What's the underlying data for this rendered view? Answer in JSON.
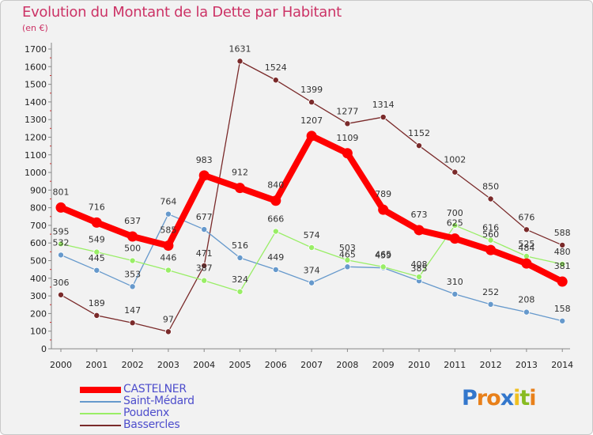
{
  "chart_data": {
    "type": "line",
    "title": "Evolution du Montant de la Dette par Habitant",
    "subtitle": "(en €)",
    "x": [
      "2000",
      "2001",
      "2002",
      "2003",
      "2004",
      "2005",
      "2006",
      "2007",
      "2008",
      "2009",
      "2010",
      "2011",
      "2012",
      "2013",
      "2014"
    ],
    "ylim": [
      0,
      1700
    ],
    "yticks": [
      0,
      100,
      200,
      300,
      400,
      500,
      600,
      700,
      800,
      900,
      1000,
      1100,
      1200,
      1300,
      1400,
      1500,
      1600,
      1700
    ],
    "grid": false,
    "legend_position": "bottom-left",
    "series": [
      {
        "name": "CASTELNER",
        "color": "#ff0000",
        "values": [
          801,
          716,
          637,
          585,
          983,
          912,
          840,
          1207,
          1109,
          789,
          673,
          625,
          560,
          484,
          381
        ]
      },
      {
        "name": "Saint-Médard",
        "color": "#6699cc",
        "values": [
          532,
          445,
          353,
          764,
          677,
          516,
          449,
          374,
          465,
          459,
          385,
          310,
          252,
          208,
          158
        ]
      },
      {
        "name": "Poudenx",
        "color": "#99ee66",
        "values": [
          595,
          549,
          500,
          446,
          387,
          324,
          666,
          574,
          503,
          465,
          408,
          700,
          616,
          525,
          480
        ]
      },
      {
        "name": "Bassercles",
        "color": "#7a2a2a",
        "values": [
          306,
          189,
          147,
          97,
          471,
          1631,
          1524,
          1399,
          1277,
          1314,
          1152,
          1002,
          850,
          676,
          588
        ]
      }
    ]
  },
  "brand": {
    "text": "Proxiti",
    "letters": [
      "P",
      "r",
      "o",
      "x",
      "i",
      "t",
      "i"
    ],
    "colors": [
      "#3377cc",
      "#e8801a",
      "#e8801a",
      "#3377cc",
      "#f0c020",
      "#88bb22",
      "#e8801a"
    ]
  }
}
